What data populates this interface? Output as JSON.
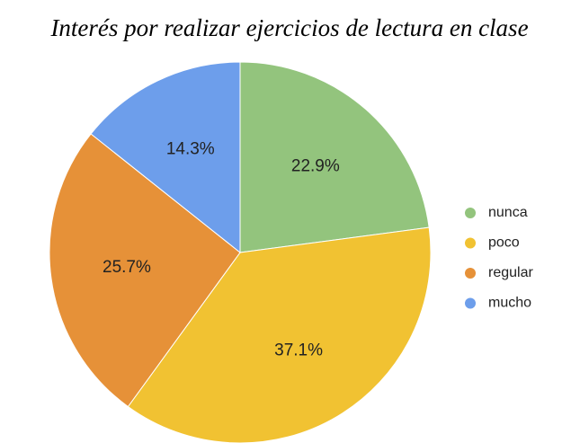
{
  "chart_data": {
    "type": "pie",
    "title": "Interés por realizar ejercicios de lectura en clase",
    "categories": [
      "nunca",
      "poco",
      "regular",
      "mucho"
    ],
    "values": [
      22.9,
      37.1,
      25.7,
      14.3
    ],
    "value_labels": [
      "22.9%",
      "37.1%",
      "25.7%",
      "14.3%"
    ],
    "colors": [
      "#93c47d",
      "#f1c232",
      "#e69138",
      "#6d9eeb"
    ],
    "legend": "right"
  }
}
